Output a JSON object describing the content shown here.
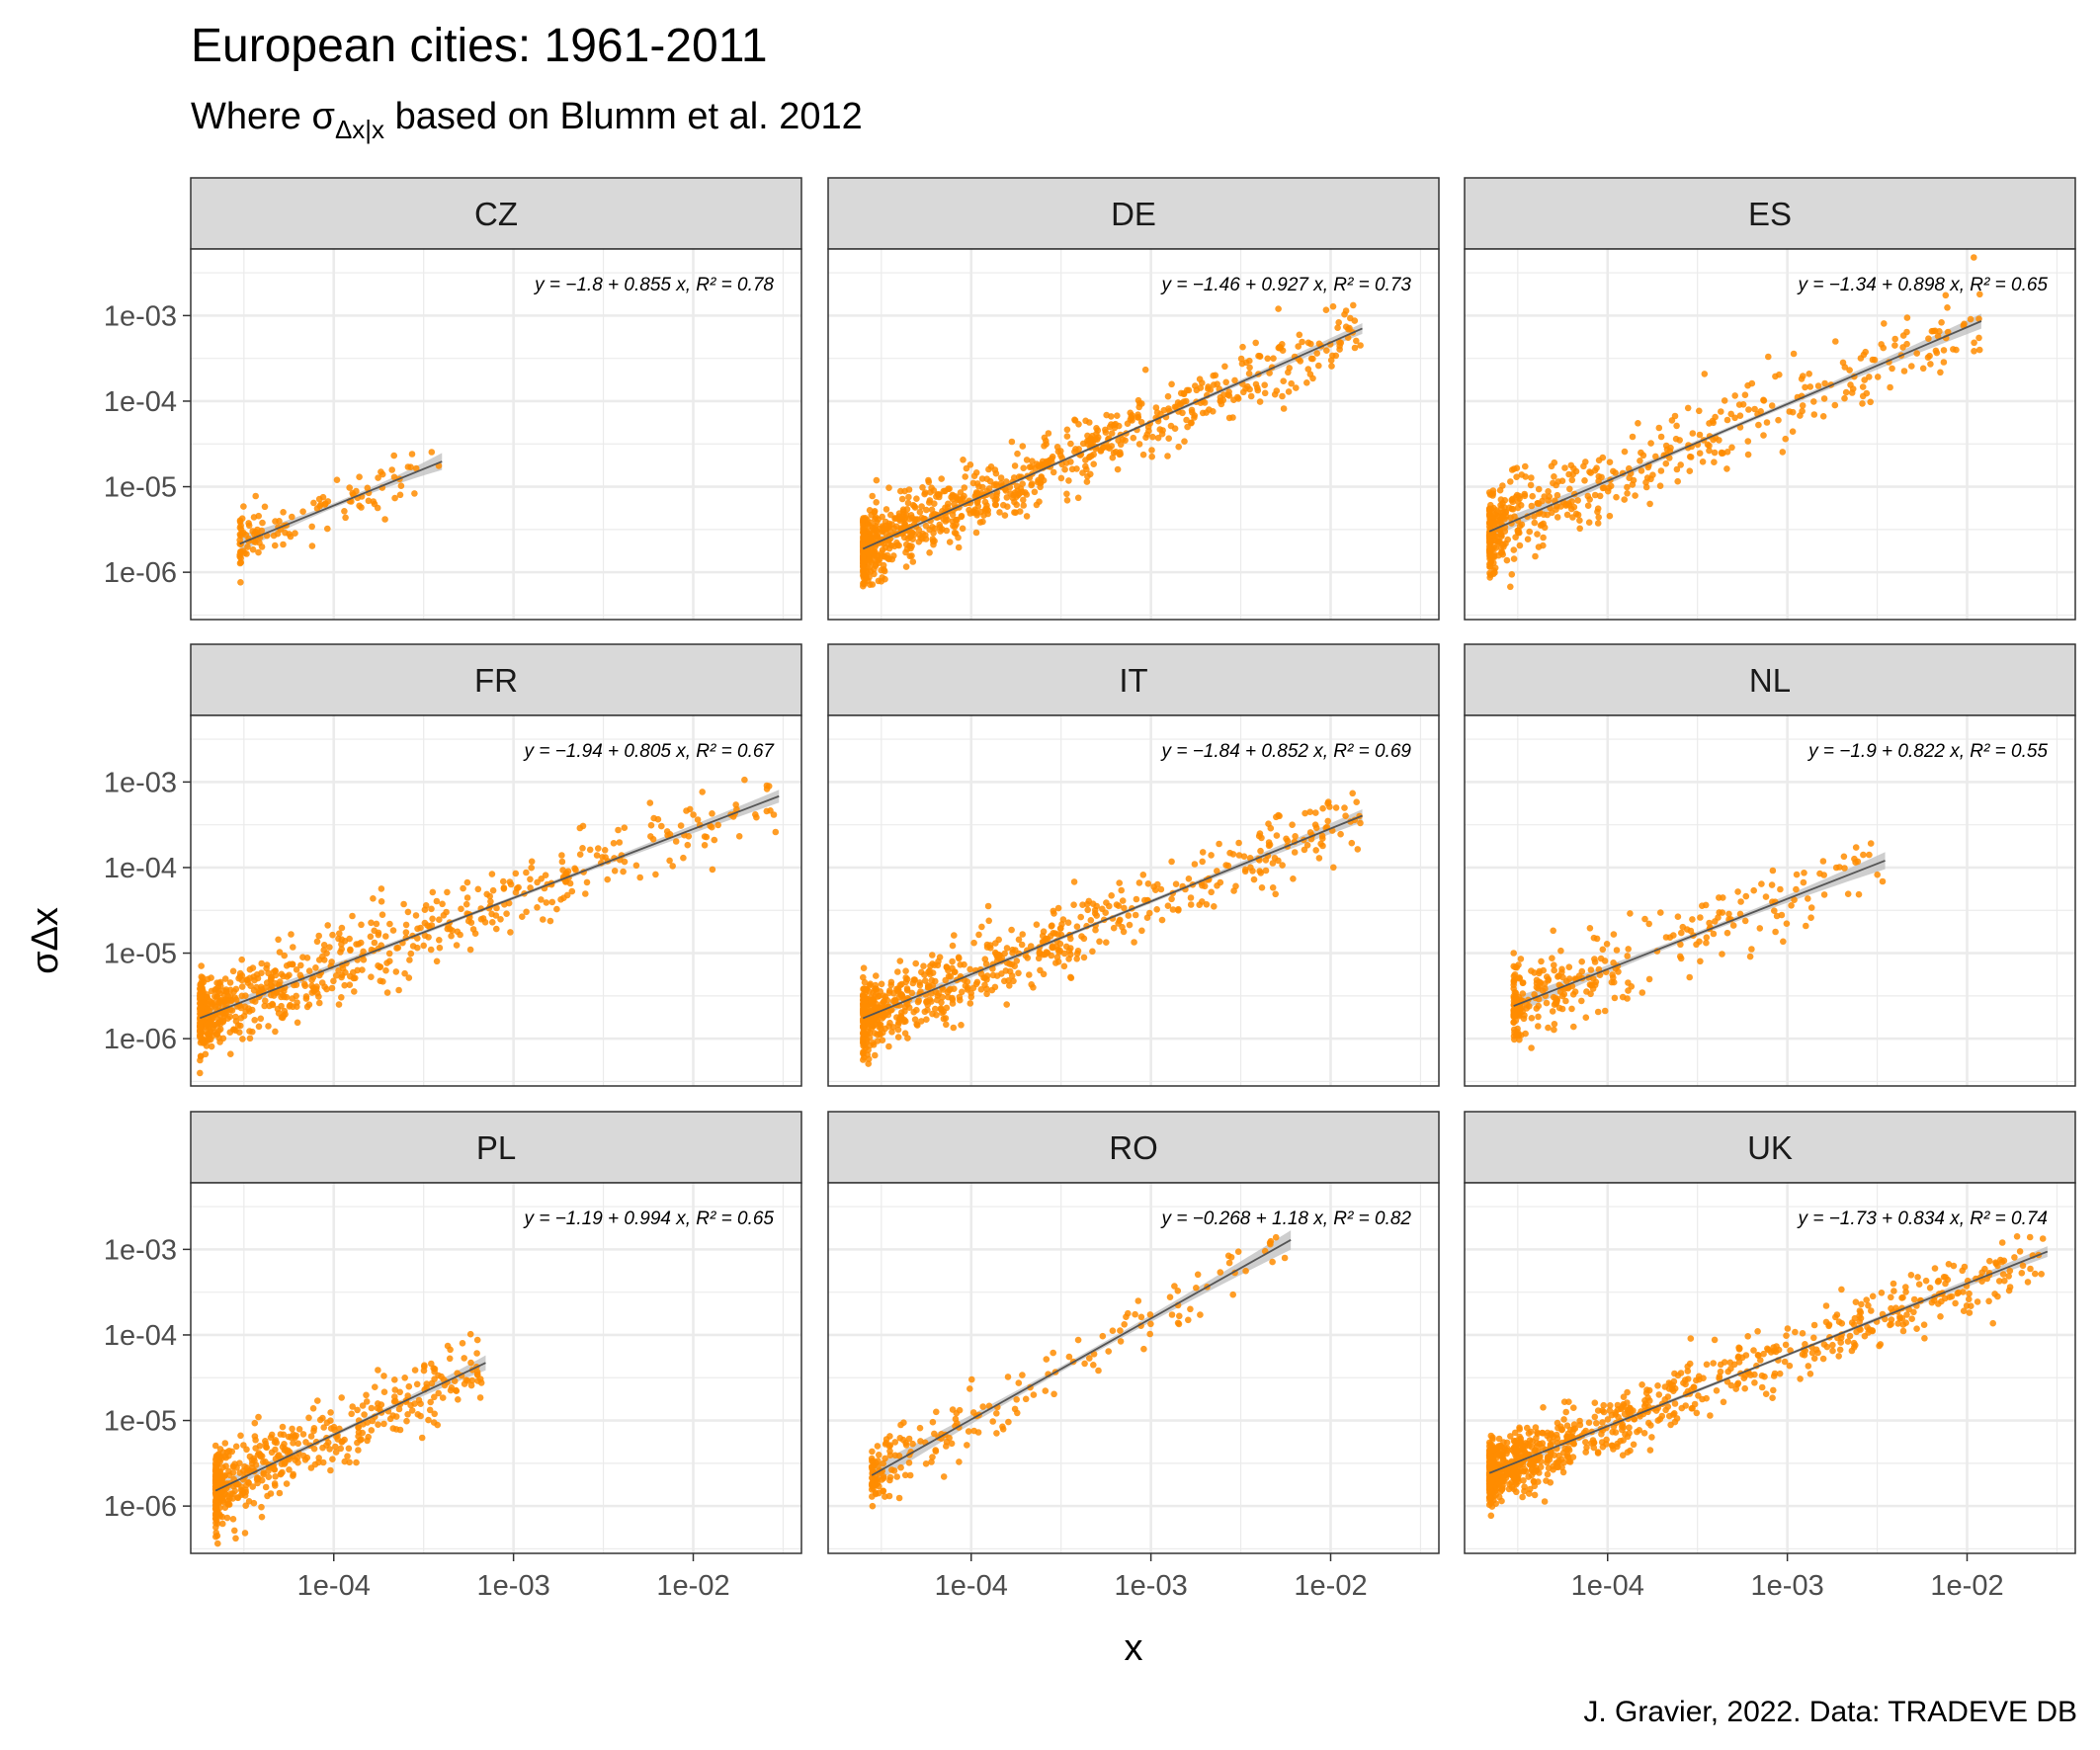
{
  "title": "European cities: 1961-2011",
  "subtitle_prefix": "Where σ",
  "subtitle_sub": "Δx|x",
  "subtitle_suffix": " based on Blumm et al. 2012",
  "caption": "J. Gravier, 2022. Data: TRADEVE DB",
  "colors": {
    "points": "#ff8c00",
    "line": "#555555",
    "ribbon": "#bdbdbd",
    "strip": "#d9d9d9",
    "grid": "#ebebeb"
  },
  "chart_data": {
    "type": "scatter",
    "facet_layout": "3x3",
    "xlabel": "x",
    "ylabel": "σΔx",
    "x_scale": "log10",
    "y_scale": "log10",
    "xlim": [
      1.6e-05,
      0.04
    ],
    "ylim": [
      2.8e-07,
      0.006
    ],
    "x_ticks": [
      0.0001,
      0.001,
      0.01
    ],
    "x_tick_labels": [
      "1e-04",
      "1e-03",
      "1e-02"
    ],
    "y_ticks": [
      1e-06,
      1e-05,
      0.0001,
      0.001
    ],
    "y_tick_labels": [
      "1e-06",
      "1e-05",
      "1e-04",
      "1e-03"
    ],
    "grid": true,
    "panels": [
      {
        "name": "CZ",
        "intercept": -1.8,
        "slope": 0.855,
        "r2": 0.78,
        "equation": "y = −1.8 + 0.855 x,  R² = 0.78",
        "x_range": [
          3e-05,
          0.0004
        ],
        "n_points": 120,
        "spread": 0.16,
        "ribbon": 0.08
      },
      {
        "name": "DE",
        "intercept": -1.46,
        "slope": 0.927,
        "r2": 0.73,
        "equation": "y = −1.46 + 0.927 x,  R² = 0.73",
        "x_range": [
          2.5e-05,
          0.015
        ],
        "n_points": 900,
        "spread": 0.2,
        "ribbon": 0.05
      },
      {
        "name": "ES",
        "intercept": -1.34,
        "slope": 0.898,
        "r2": 0.65,
        "equation": "y = −1.34 + 0.898 x,  R² = 0.65",
        "x_range": [
          2.2e-05,
          0.012
        ],
        "n_points": 500,
        "spread": 0.24,
        "ribbon": 0.07
      },
      {
        "name": "FR",
        "intercept": -1.94,
        "slope": 0.805,
        "r2": 0.67,
        "equation": "y = −1.94 + 0.805 x,  R² = 0.67",
        "x_range": [
          1.8e-05,
          0.03
        ],
        "n_points": 700,
        "spread": 0.22,
        "ribbon": 0.06
      },
      {
        "name": "IT",
        "intercept": -1.84,
        "slope": 0.852,
        "r2": 0.69,
        "equation": "y = −1.84 + 0.852 x,  R² = 0.69",
        "x_range": [
          2.5e-05,
          0.015
        ],
        "n_points": 700,
        "spread": 0.21,
        "ribbon": 0.06
      },
      {
        "name": "NL",
        "intercept": -1.9,
        "slope": 0.822,
        "r2": 0.55,
        "equation": "y = −1.9 + 0.822 x,  R² = 0.55",
        "x_range": [
          3e-05,
          0.0035
        ],
        "n_points": 300,
        "spread": 0.24,
        "ribbon": 0.08
      },
      {
        "name": "PL",
        "intercept": -1.19,
        "slope": 0.994,
        "r2": 0.65,
        "equation": "y = −1.19 + 0.994 x,  R² = 0.65",
        "x_range": [
          2.2e-05,
          0.0007
        ],
        "n_points": 500,
        "spread": 0.22,
        "ribbon": 0.07
      },
      {
        "name": "RO",
        "intercept": -0.268,
        "slope": 1.18,
        "r2": 0.82,
        "equation": "y = −0.268 + 1.18 x,  R² = 0.82",
        "x_range": [
          2.8e-05,
          0.006
        ],
        "n_points": 200,
        "spread": 0.18,
        "ribbon": 0.09
      },
      {
        "name": "UK",
        "intercept": -1.73,
        "slope": 0.834,
        "r2": 0.74,
        "equation": "y = −1.73 + 0.834 x,  R² = 0.74",
        "x_range": [
          2.2e-05,
          0.028
        ],
        "n_points": 900,
        "spread": 0.19,
        "ribbon": 0.05
      }
    ]
  }
}
